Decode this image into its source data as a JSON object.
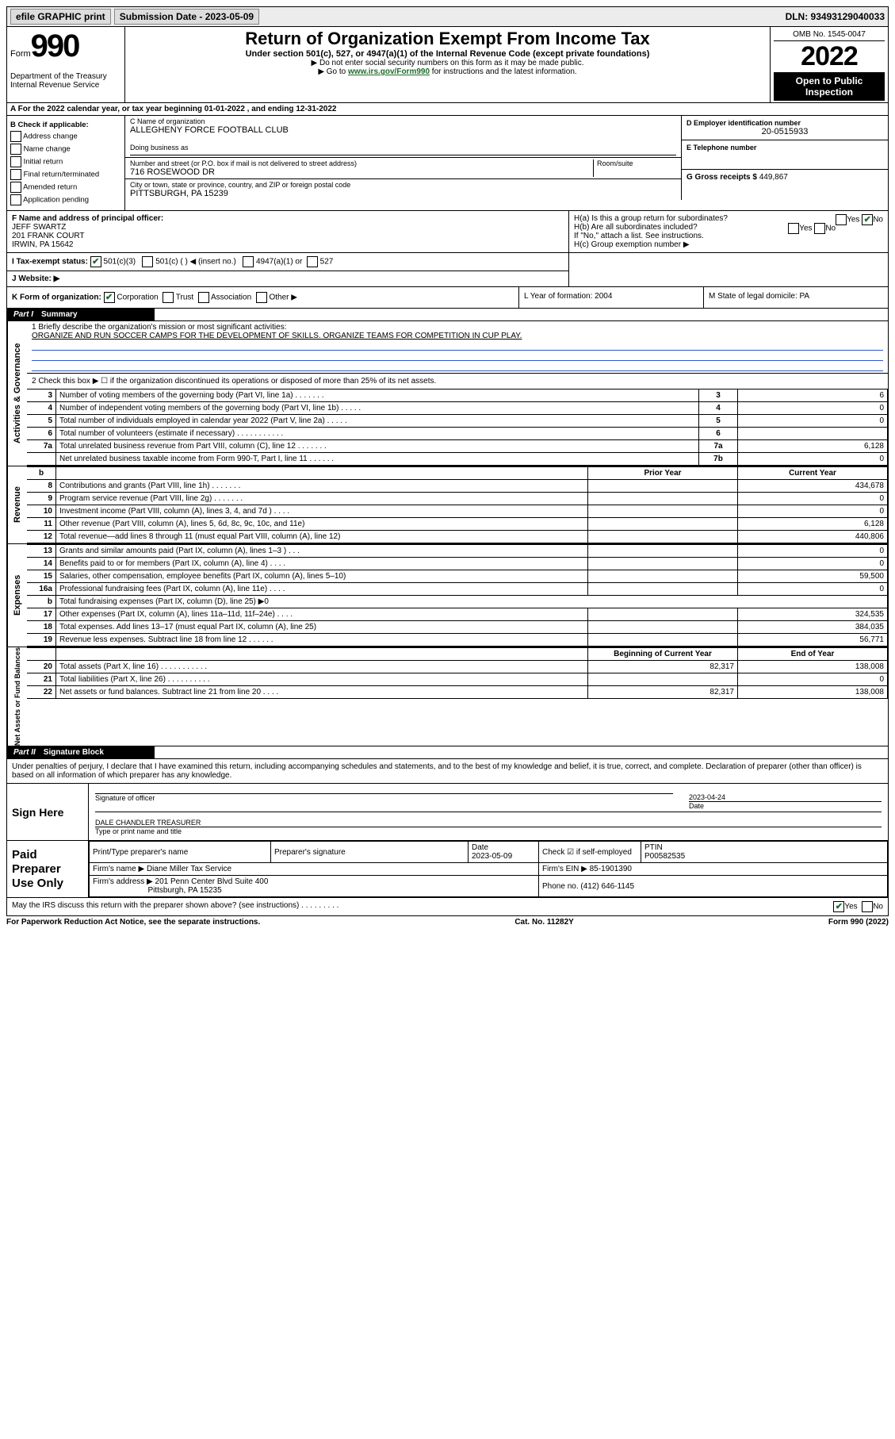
{
  "topbar": {
    "efile": "efile GRAPHIC print",
    "submission_label": "Submission Date - 2023-05-09",
    "dln": "DLN: 93493129040033"
  },
  "header": {
    "form_word": "Form",
    "form_num": "990",
    "dept": "Department of the Treasury\nInternal Revenue Service",
    "title": "Return of Organization Exempt From Income Tax",
    "sub": "Under section 501(c), 527, or 4947(a)(1) of the Internal Revenue Code (except private foundations)",
    "note1": "▶ Do not enter social security numbers on this form as it may be made public.",
    "note2_prefix": "▶ Go to ",
    "note2_link": "www.irs.gov/Form990",
    "note2_suffix": " for instructions and the latest information.",
    "omb": "OMB No. 1545-0047",
    "year": "2022",
    "inspect": "Open to Public Inspection"
  },
  "rowA": "A For the 2022 calendar year, or tax year beginning 01-01-2022    , and ending 12-31-2022",
  "colB": {
    "label": "B Check if applicable:",
    "items": [
      "Address change",
      "Name change",
      "Initial return",
      "Final return/terminated",
      "Amended return",
      "Application pending"
    ]
  },
  "boxC": {
    "label": "C Name of organization",
    "name": "ALLEGHENY FORCE FOOTBALL CLUB",
    "dba_label": "Doing business as",
    "street_label": "Number and street (or P.O. box if mail is not delivered to street address)",
    "room_label": "Room/suite",
    "street": "716 ROSEWOOD DR",
    "city_label": "City or town, state or province, country, and ZIP or foreign postal code",
    "city": "PITTSBURGH, PA  15239"
  },
  "boxD": {
    "label": "D Employer identification number",
    "value": "20-0515933"
  },
  "boxE": {
    "label": "E Telephone number",
    "value": ""
  },
  "boxG": {
    "label": "G Gross receipts $",
    "value": "449,867"
  },
  "boxF": {
    "label": "F Name and address of principal officer:",
    "lines": [
      "JEFF SWARTZ",
      "201 FRANK COURT",
      "IRWIN, PA  15642"
    ]
  },
  "boxH": {
    "a_label": "H(a)  Is this a group return for subordinates?",
    "a_no": true,
    "b_label": "H(b)  Are all subordinates included?",
    "b_note": "If \"No,\" attach a list. See instructions.",
    "c_label": "H(c)  Group exemption number ▶"
  },
  "rowI": {
    "label": "I    Tax-exempt status:",
    "c3_checked": true,
    "opts": [
      "501(c)(3)",
      "501(c) (   ) ◀ (insert no.)",
      "4947(a)(1) or",
      "527"
    ]
  },
  "rowJ": {
    "label": "J    Website: ▶"
  },
  "rowK": {
    "k": "K Form of organization:",
    "k_opts": [
      "Corporation",
      "Trust",
      "Association",
      "Other ▶"
    ],
    "k_checked": 0,
    "l": "L Year of formation: 2004",
    "m": "M State of legal domicile: PA"
  },
  "partI": {
    "label": "Part I",
    "title": "Summary"
  },
  "mission": {
    "line1_label": "1   Briefly describe the organization's mission or most significant activities:",
    "line1_text": "ORGANIZE AND RUN SOCCER CAMPS FOR THE DEVELOPMENT OF SKILLS. ORGANIZE TEAMS FOR COMPETITION IN CUP PLAY."
  },
  "governance": {
    "line2": "2   Check this box ▶ ☐  if the organization discontinued its operations or disposed of more than 25% of its net assets.",
    "rows": [
      {
        "n": "3",
        "text": "Number of voting members of the governing body (Part VI, line 1a)   .    .    .    .    .    .    .",
        "code": "3",
        "val": "6"
      },
      {
        "n": "4",
        "text": "Number of independent voting members of the governing body (Part VI, line 1b)  .    .    .    .    .",
        "code": "4",
        "val": "0"
      },
      {
        "n": "5",
        "text": "Total number of individuals employed in calendar year 2022 (Part V, line 2a)    .    .    .    .    .",
        "code": "5",
        "val": "0"
      },
      {
        "n": "6",
        "text": "Total number of volunteers (estimate if necessary)   .    .    .    .    .    .    .    .    .    .    .",
        "code": "6",
        "val": ""
      },
      {
        "n": "7a",
        "text": "Total unrelated business revenue from Part VIII, column (C), line 12  .    .    .    .    .    .    .",
        "code": "7a",
        "val": "6,128"
      },
      {
        "n": "",
        "text": "Net unrelated business taxable income from Form 990-T, Part I, line 11   .    .    .    .    .    .",
        "code": "7b",
        "val": "0"
      }
    ]
  },
  "rev_head": {
    "phb": "b",
    "prior": "Prior Year",
    "curr": "Current Year"
  },
  "revenue": [
    {
      "n": "8",
      "text": "Contributions and grants (Part VIII, line 1h)   .    .    .    .    .    .    .",
      "prior": "",
      "curr": "434,678"
    },
    {
      "n": "9",
      "text": "Program service revenue (Part VIII, line 2g)    .    .    .    .    .    .    .",
      "prior": "",
      "curr": "0"
    },
    {
      "n": "10",
      "text": "Investment income (Part VIII, column (A), lines 3, 4, and 7d ) .    .    .    .",
      "prior": "",
      "curr": "0"
    },
    {
      "n": "11",
      "text": "Other revenue (Part VIII, column (A), lines 5, 6d, 8c, 9c, 10c, and 11e)",
      "prior": "",
      "curr": "6,128"
    },
    {
      "n": "12",
      "text": "Total revenue—add lines 8 through 11 (must equal Part VIII, column (A), line 12)",
      "prior": "",
      "curr": "440,806"
    }
  ],
  "expenses": [
    {
      "n": "13",
      "text": "Grants and similar amounts paid (Part IX, column (A), lines 1–3 )  .    .    .",
      "prior": "",
      "curr": "0"
    },
    {
      "n": "14",
      "text": "Benefits paid to or for members (Part IX, column (A), line 4) .    .    .    .",
      "prior": "",
      "curr": "0"
    },
    {
      "n": "15",
      "text": "Salaries, other compensation, employee benefits (Part IX, column (A), lines 5–10)",
      "prior": "",
      "curr": "59,500"
    },
    {
      "n": "16a",
      "text": "Professional fundraising fees (Part IX, column (A), line 11e)  .    .    .    .",
      "prior": "",
      "curr": "0"
    },
    {
      "n": "b",
      "text": "Total fundraising expenses (Part IX, column (D), line 25) ▶0",
      "prior": null,
      "curr": null
    },
    {
      "n": "17",
      "text": "Other expenses (Part IX, column (A), lines 11a–11d, 11f–24e)  .    .    .    .",
      "prior": "",
      "curr": "324,535"
    },
    {
      "n": "18",
      "text": "Total expenses. Add lines 13–17 (must equal Part IX, column (A), line 25)",
      "prior": "",
      "curr": "384,035"
    },
    {
      "n": "19",
      "text": "Revenue less expenses. Subtract line 18 from line 12  .    .    .    .    .    .",
      "prior": "",
      "curr": "56,771"
    }
  ],
  "na_head": {
    "prior": "Beginning of Current Year",
    "curr": "End of Year"
  },
  "netassets": [
    {
      "n": "20",
      "text": "Total assets (Part X, line 16)   .    .    .    .    .    .    .    .    .    .    .",
      "prior": "82,317",
      "curr": "138,008"
    },
    {
      "n": "21",
      "text": "Total liabilities (Part X, line 26)   .    .    .    .    .    .    .    .    .    .",
      "prior": "",
      "curr": "0"
    },
    {
      "n": "22",
      "text": "Net assets or fund balances. Subtract line 21 from line 20  .    .    .    .",
      "prior": "82,317",
      "curr": "138,008"
    }
  ],
  "partII": {
    "label": "Part II",
    "title": "Signature Block"
  },
  "perjury": "Under penalties of perjury, I declare that I have examined this return, including accompanying schedules and statements, and to the best of my knowledge and belief, it is true, correct, and complete. Declaration of preparer (other than officer) is based on all information of which preparer has any knowledge.",
  "sign": {
    "label": "Sign Here",
    "sig_of_officer": "Signature of officer",
    "date_label": "Date",
    "date": "2023-04-24",
    "name": "DALE CHANDLER  TREASURER",
    "name_label": "Type or print name and title"
  },
  "preparer": {
    "label": "Paid Preparer Use Only",
    "cols": [
      "Print/Type preparer's name",
      "Preparer's signature",
      "Date",
      "",
      "PTIN"
    ],
    "date": "2023-05-09",
    "check_label": "Check ☑ if self-employed",
    "ptin": "P00582535",
    "firm_name_label": "Firm's name     ▶",
    "firm_name": "Diane Miller Tax Service",
    "firm_ein_label": "Firm's EIN ▶",
    "firm_ein": "85-1901390",
    "firm_addr_label": "Firm's address ▶",
    "firm_addr1": "201 Penn Center Blvd Suite 400",
    "firm_addr2": "Pittsburgh, PA  15235",
    "phone_label": "Phone no.",
    "phone": "(412) 646-1145"
  },
  "discuss": {
    "text": "May the IRS discuss this return with the preparer shown above? (see instructions)   .    .    .    .    .    .    .    .    .",
    "yes": true
  },
  "footer": {
    "left": "For Paperwork Reduction Act Notice, see the separate instructions.",
    "mid": "Cat. No. 11282Y",
    "right": "Form 990 (2022)"
  },
  "side_labels": {
    "gov": "Activities & Governance",
    "rev": "Revenue",
    "exp": "Expenses",
    "na": "Net Assets or Fund Balances"
  }
}
